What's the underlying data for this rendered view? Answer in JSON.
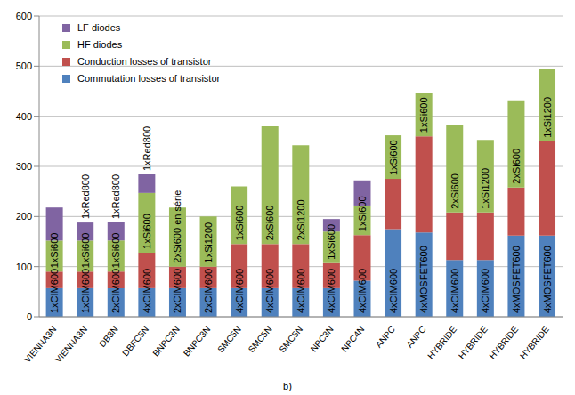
{
  "chart_data": {
    "type": "bar",
    "stacked": true,
    "grid": true,
    "legend": "upper left",
    "caption": "b)",
    "categories": [
      "VIENNA3N",
      "VIENNA3N",
      "DB3N",
      "DBFC5N",
      "BNPC3N",
      "BNPC3N",
      "SMC5N",
      "SMC5N",
      "SMC5N",
      "NPC3N",
      "NPC4N",
      "ANPC",
      "ANPC",
      "HYBRIDE",
      "HYBRIDE",
      "HYBRIDE",
      "HYBRIDE"
    ],
    "series": [
      {
        "name": "Commutation  losses of transistor",
        "color": "#4f81bd",
        "values": [
          57,
          57,
          57,
          57,
          57,
          57,
          57,
          57,
          57,
          57,
          72,
          175,
          168,
          113,
          113,
          162,
          162
        ]
      },
      {
        "name": "Conduction losses of transistor",
        "color": "#c0504d",
        "values": [
          33,
          33,
          33,
          71,
          43,
          43,
          88,
          88,
          88,
          50,
          91,
          100,
          192,
          95,
          95,
          96,
          188
        ]
      },
      {
        "name": "HF diodes",
        "color": "#9bbb59",
        "values": [
          62,
          62,
          62,
          119,
          118,
          100,
          115,
          235,
          197,
          63,
          59,
          87,
          87,
          175,
          145,
          174,
          145
        ]
      },
      {
        "name": "LF diodes",
        "color": "#8064a2",
        "values": [
          66,
          36,
          36,
          37,
          null,
          null,
          null,
          null,
          null,
          25,
          50,
          null,
          null,
          null,
          null,
          null,
          null
        ]
      }
    ],
    "annotations": [
      {
        "transistor": "1xCIM600",
        "diode": "1xSi600"
      },
      {
        "transistor": "1xCIM600",
        "diode": "1xSi600",
        "lf": "1xRed800"
      },
      {
        "transistor": "2xCIM600",
        "diode": "1xSi600",
        "lf": "1xRed800"
      },
      {
        "transistor": "4xCIM600",
        "diode": "1xSi600",
        "lf": "1xRed800"
      },
      {
        "transistor": "2xCIM600",
        "diode": "2xSi600 en série"
      },
      {
        "transistor": "2xCIM600",
        "diode": "1xSi1200"
      },
      {
        "transistor": "4xCIM600",
        "diode": "1xSi600"
      },
      {
        "transistor": "4xCIM600",
        "diode": "2xSi600"
      },
      {
        "transistor": "4xCIM600",
        "diode": "2xSi1200"
      },
      {
        "transistor": "4xCIM600",
        "diode": "1xSi600"
      },
      {
        "transistor": "4xCIM600",
        "diode": "1xSi600"
      },
      {
        "transistor": "4xCIM600",
        "diode": "1xSi600"
      },
      {
        "transistor": "4xMOSFET600",
        "diode": "1xSi600"
      },
      {
        "transistor": "4xCIM600",
        "diode": "2xSi600"
      },
      {
        "transistor": "4xCIM600",
        "diode": "1xSi1200"
      },
      {
        "transistor": "4xMOSFET600",
        "diode": "2xSi600"
      },
      {
        "transistor": "4xMOSFET600",
        "diode": "1xSi1200"
      }
    ],
    "ylim": [
      0,
      600
    ],
    "yticks": [
      0,
      100,
      200,
      300,
      400,
      500,
      600
    ]
  }
}
